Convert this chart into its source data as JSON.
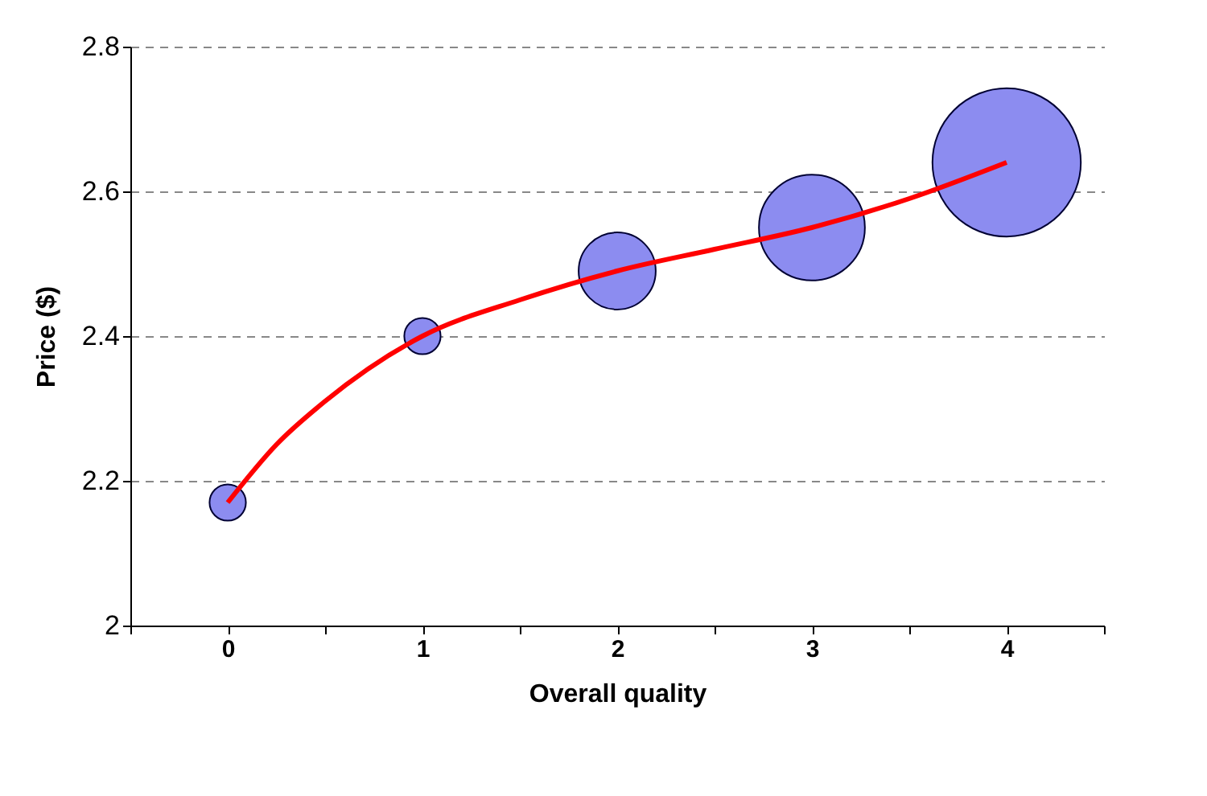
{
  "chart_data": {
    "type": "bubble",
    "xlabel": "Overall quality",
    "ylabel": "Price ($)",
    "x": [
      0,
      1,
      2,
      3,
      4
    ],
    "series": [
      {
        "color": "#8c8cf0",
        "values": [
          2.17,
          2.4,
          2.49,
          2.55,
          2.64
        ],
        "sizes": [
          0.06,
          0.06,
          0.27,
          0.51,
          1
        ]
      },
      {
        "type": "line",
        "color": "#ff0000",
        "x": [
          0,
          0.25,
          0.5,
          1,
          1.5,
          2,
          2.5,
          3,
          3.5,
          4
        ],
        "values": [
          2.17,
          2.25,
          2.31,
          2.4,
          2.45,
          2.49,
          2.52,
          2.55,
          2.59,
          2.64
        ]
      }
    ],
    "xlim": [
      -0.5,
      4.5
    ],
    "xticks": [
      {
        "value": -0.5,
        "label": null
      },
      0,
      {
        "value": 0.5,
        "label": null
      },
      1,
      {
        "value": 1.5,
        "label": null
      },
      2,
      {
        "value": 2.5,
        "label": null
      },
      3,
      {
        "value": 3.5,
        "label": null
      },
      4,
      {
        "value": 4.5,
        "label": null
      }
    ],
    "ylim": [
      2,
      2.8
    ],
    "yticks": [
      2,
      2.2,
      2.4,
      2.6,
      2.8
    ],
    "grid": "y",
    "line_style": "solid"
  }
}
